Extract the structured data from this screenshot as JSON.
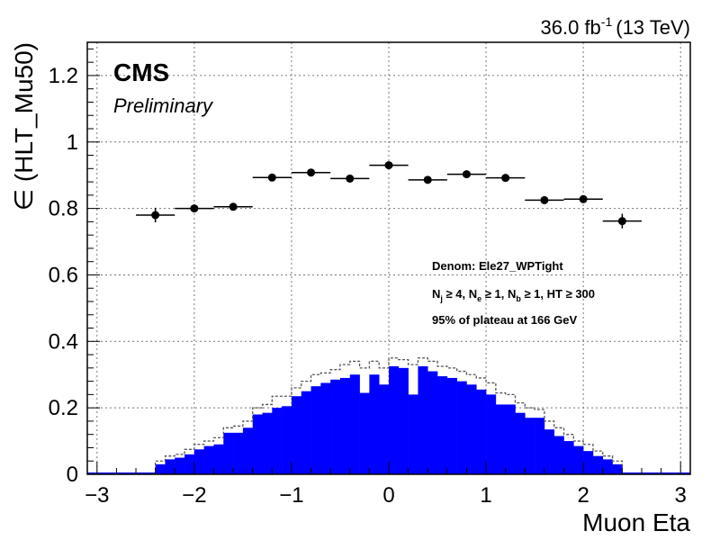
{
  "header": {
    "lumi_value": "36.0 fb",
    "lumi_exp": "-1",
    "energy": "(13 TeV)"
  },
  "labels": {
    "experiment": "CMS",
    "status": "Preliminary",
    "info_line1": "Denom: Ele27_WPTight",
    "info_line2": {
      "nj": "N",
      "nj_sub": "j",
      "nj_rest": " ≥ 4, ",
      "ne": "N",
      "ne_sub": "e",
      "ne_rest": " ≥ 1, ",
      "nb": "N",
      "nb_sub": "b",
      "nb_rest": " ≥ 1, HT ≥ 300"
    },
    "info_line3": "95% of plateau at 166 GeV"
  },
  "chart_data": {
    "type": "scatter",
    "xlabel": "Muon Eta",
    "ylabel": "∈ (HLT_Mu50)",
    "xlim": [
      -3.1,
      3.1
    ],
    "ylim": [
      0,
      1.3
    ],
    "x_ticks": [
      -3,
      -2,
      -1,
      0,
      1,
      2,
      3
    ],
    "x_tick_labels": [
      "−3",
      "−2",
      "−1",
      "0",
      "1",
      "2",
      "3"
    ],
    "y_ticks": [
      0,
      0.2,
      0.4,
      0.6,
      0.8,
      1,
      1.2
    ],
    "y_tick_labels": [
      "0",
      "0.2",
      "0.4",
      "0.6",
      "0.8",
      "1",
      "1.2"
    ],
    "grid": true,
    "efficiency": {
      "x": [
        -2.4,
        -2.0,
        -1.6,
        -1.2,
        -0.8,
        -0.4,
        0.0,
        0.4,
        0.8,
        1.2,
        1.6,
        2.0,
        2.4
      ],
      "x_err": [
        0.2,
        0.2,
        0.2,
        0.2,
        0.2,
        0.2,
        0.2,
        0.2,
        0.2,
        0.2,
        0.2,
        0.2,
        0.2
      ],
      "y": [
        0.78,
        0.8,
        0.805,
        0.893,
        0.908,
        0.89,
        0.93,
        0.886,
        0.903,
        0.892,
        0.825,
        0.828,
        0.762
      ],
      "y_err": [
        0.022,
        0.008,
        0.008,
        0.006,
        0.006,
        0.006,
        0.006,
        0.006,
        0.006,
        0.006,
        0.008,
        0.008,
        0.022
      ],
      "color": "#000000"
    },
    "distributions": {
      "bin_low_edges": [
        -2.4,
        -2.3,
        -2.2,
        -2.1,
        -2.0,
        -1.9,
        -1.8,
        -1.7,
        -1.6,
        -1.5,
        -1.4,
        -1.3,
        -1.2,
        -1.1,
        -1.0,
        -0.9,
        -0.8,
        -0.7,
        -0.6,
        -0.5,
        -0.4,
        -0.3,
        -0.2,
        -0.1,
        0.0,
        0.1,
        0.2,
        0.3,
        0.4,
        0.5,
        0.6,
        0.7,
        0.8,
        0.9,
        1.0,
        1.1,
        1.2,
        1.3,
        1.4,
        1.5,
        1.6,
        1.7,
        1.8,
        1.9,
        2.0,
        2.1,
        2.2,
        2.3
      ],
      "bin_width": 0.1,
      "passing": [
        0.03,
        0.045,
        0.05,
        0.06,
        0.075,
        0.085,
        0.09,
        0.125,
        0.125,
        0.14,
        0.18,
        0.185,
        0.2,
        0.205,
        0.235,
        0.25,
        0.265,
        0.275,
        0.285,
        0.29,
        0.3,
        0.245,
        0.3,
        0.27,
        0.325,
        0.32,
        0.24,
        0.325,
        0.31,
        0.295,
        0.29,
        0.28,
        0.27,
        0.255,
        0.24,
        0.21,
        0.21,
        0.185,
        0.17,
        0.17,
        0.135,
        0.115,
        0.1,
        0.085,
        0.07,
        0.055,
        0.045,
        0.03
      ],
      "denominator": [
        0.04,
        0.055,
        0.06,
        0.075,
        0.09,
        0.1,
        0.11,
        0.14,
        0.145,
        0.16,
        0.2,
        0.21,
        0.235,
        0.235,
        0.26,
        0.28,
        0.3,
        0.305,
        0.315,
        0.33,
        0.34,
        0.32,
        0.34,
        0.32,
        0.35,
        0.345,
        0.33,
        0.35,
        0.34,
        0.325,
        0.32,
        0.31,
        0.3,
        0.29,
        0.275,
        0.245,
        0.24,
        0.215,
        0.2,
        0.195,
        0.16,
        0.14,
        0.12,
        0.1,
        0.09,
        0.07,
        0.055,
        0.04
      ],
      "passing_color": "#0000ff",
      "denominator_color": "#555555"
    }
  }
}
